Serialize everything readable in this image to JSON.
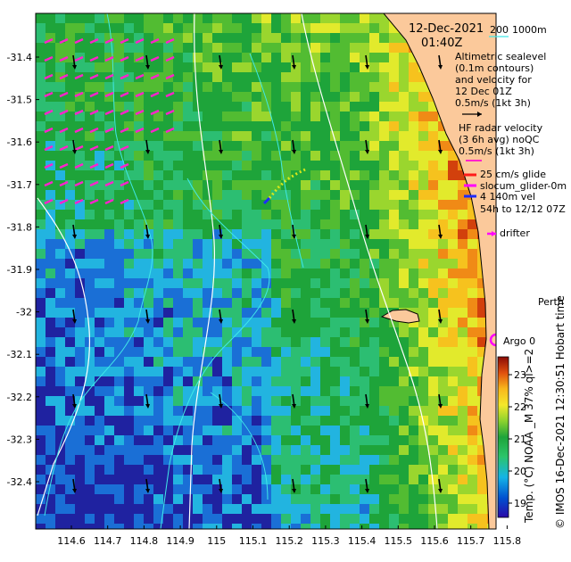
{
  "header": {
    "date": "12-Dec-2021",
    "time": "01:40Z",
    "scale_a": "200",
    "scale_b": "1000m"
  },
  "legend": {
    "alt_lines": [
      "Altimetric sealevel",
      "(0.1m contours)",
      "and velocity for",
      "12 Dec 01Z",
      "0.5m/s (1kt 3h)"
    ],
    "hf_lines": [
      "HF radar velocity",
      "(3 6h avg) noQC",
      "0.5m/s (1kt 3h)"
    ],
    "glide": "25 cm/s glide",
    "glider_name": "slocum_glider-0m",
    "vel_lines": [
      "4 140m vel",
      "54h to 12/12 07Z"
    ],
    "drifter": "drifter",
    "argo": "Argo 0",
    "city": "Perth"
  },
  "axes": {
    "lat_ticks": [
      "-31.4",
      "-31.5",
      "-31.6",
      "-31.7",
      "-31.8",
      "-31.9",
      "-32",
      "-32.1",
      "-32.2",
      "-32.3",
      "-32.4"
    ],
    "lon_ticks": [
      "114.6",
      "114.7",
      "114.8",
      "114.9",
      "115",
      "115.1",
      "115.2",
      "115.3",
      "115.4",
      "115.5",
      "115.6",
      "115.7",
      "115.8"
    ]
  },
  "colorbar": {
    "ticks": [
      "23",
      "22",
      "21",
      "20",
      "19"
    ],
    "label": "Temp. (°C) NOAA _M 37% ql>=2",
    "colors": [
      "#2b0aa8",
      "#0050d0",
      "#15b4e6",
      "#2cc46a",
      "#1ea43a",
      "#5cc22e",
      "#b8e030",
      "#f4e82a",
      "#f8b81c",
      "#f07a14",
      "#c62a0a",
      "#8a0a06"
    ]
  },
  "credit": "© IMOS 16-Dec-2021 12:30:51 Hobart time",
  "colors": {
    "land": "#fbc99b",
    "glider_track": "#d8e81a",
    "drifter": "#ff00ff",
    "hf_arrows": "#ff22cc",
    "contours": "#ffffff",
    "cyan": "#40e8e8"
  }
}
